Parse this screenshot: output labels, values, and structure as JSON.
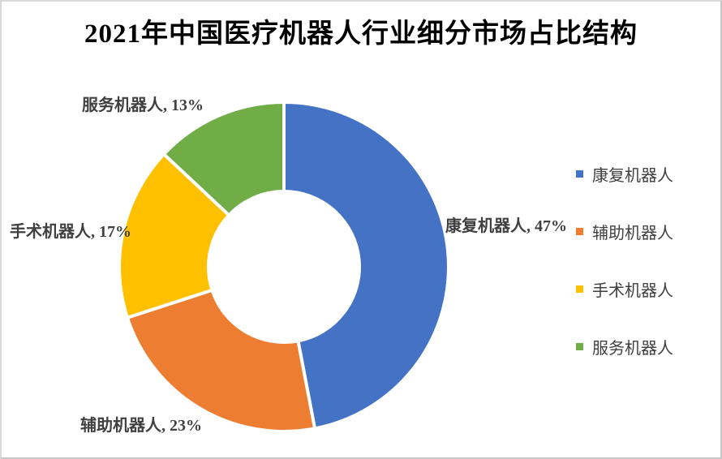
{
  "page": {
    "background_color": "#FFFFFF",
    "frame_border_color": "#D9D9D9"
  },
  "chart_data": {
    "type": "pie",
    "subtype": "donut",
    "title": "2021年中国医疗机器人行业细分市场占比结构",
    "unit": "%",
    "hole_ratio": 0.46,
    "start_angle_deg": 0,
    "direction": "clockwise",
    "legend_position": "right",
    "gridlines": false,
    "slice_gap_color": "#FFFFFF",
    "label_color": "#404040",
    "title_color": "#000000",
    "slices": [
      {
        "label": "康复机器人",
        "value": 47,
        "color": "#4472C4",
        "data_label": "康复机器人, 47%"
      },
      {
        "label": "辅助机器人",
        "value": 23,
        "color": "#ED7D31",
        "data_label": "辅助机器人, 23%"
      },
      {
        "label": "手术机器人",
        "value": 17,
        "color": "#FFC000",
        "data_label": "手术机器人, 17%"
      },
      {
        "label": "服务机器人",
        "value": 13,
        "color": "#70AD47",
        "data_label": "服务机器人, 13%"
      }
    ]
  }
}
